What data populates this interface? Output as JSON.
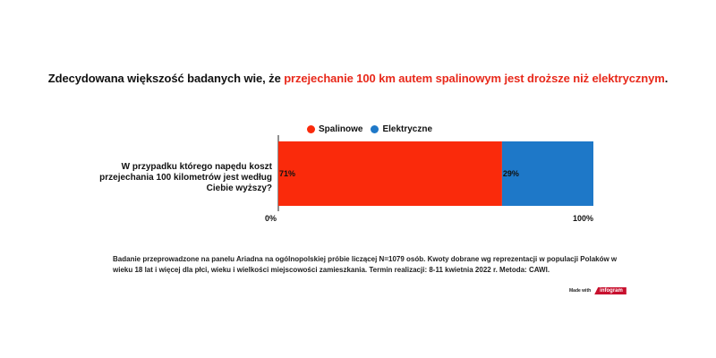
{
  "title": {
    "prefix": "Zdecydowana większość badanych wie, że ",
    "highlight": "przejechanie 100 km autem spalinowym jest droższe niż elektrycznym",
    "suffix": "."
  },
  "colors": {
    "highlight": "#e8291b",
    "spalinowe": "#fa2a0b",
    "elektryczne": "#1e78c8"
  },
  "chart_data": {
    "type": "bar",
    "stacked": true,
    "orientation": "horizontal",
    "categories": [
      "W przypadku którego napędu koszt przejechania 100 kilometrów jest według Ciebie wyższy?"
    ],
    "series": [
      {
        "name": "Spalinowe",
        "values": [
          71
        ],
        "label": "71%"
      },
      {
        "name": "Elektryczne",
        "values": [
          29
        ],
        "label": "29%"
      }
    ],
    "xlim": [
      0,
      100
    ],
    "tick_labels": [
      "0%",
      "100%"
    ],
    "legend": "top"
  },
  "footnote": "Badanie przeprowadzone na panelu Ariadna na ogólnopolskiej próbie liczącej N=1079 osób. Kwoty dobrane wg reprezentacji w populacji Polaków w wieku 18 lat i więcej dla płci, wieku i wielkości miejscowości zamieszkania. Termin realizacji:  8-11 kwietnia 2022 r. Metoda: CAWI.",
  "branding": {
    "made_with": "Made with",
    "brand": "infogram"
  }
}
